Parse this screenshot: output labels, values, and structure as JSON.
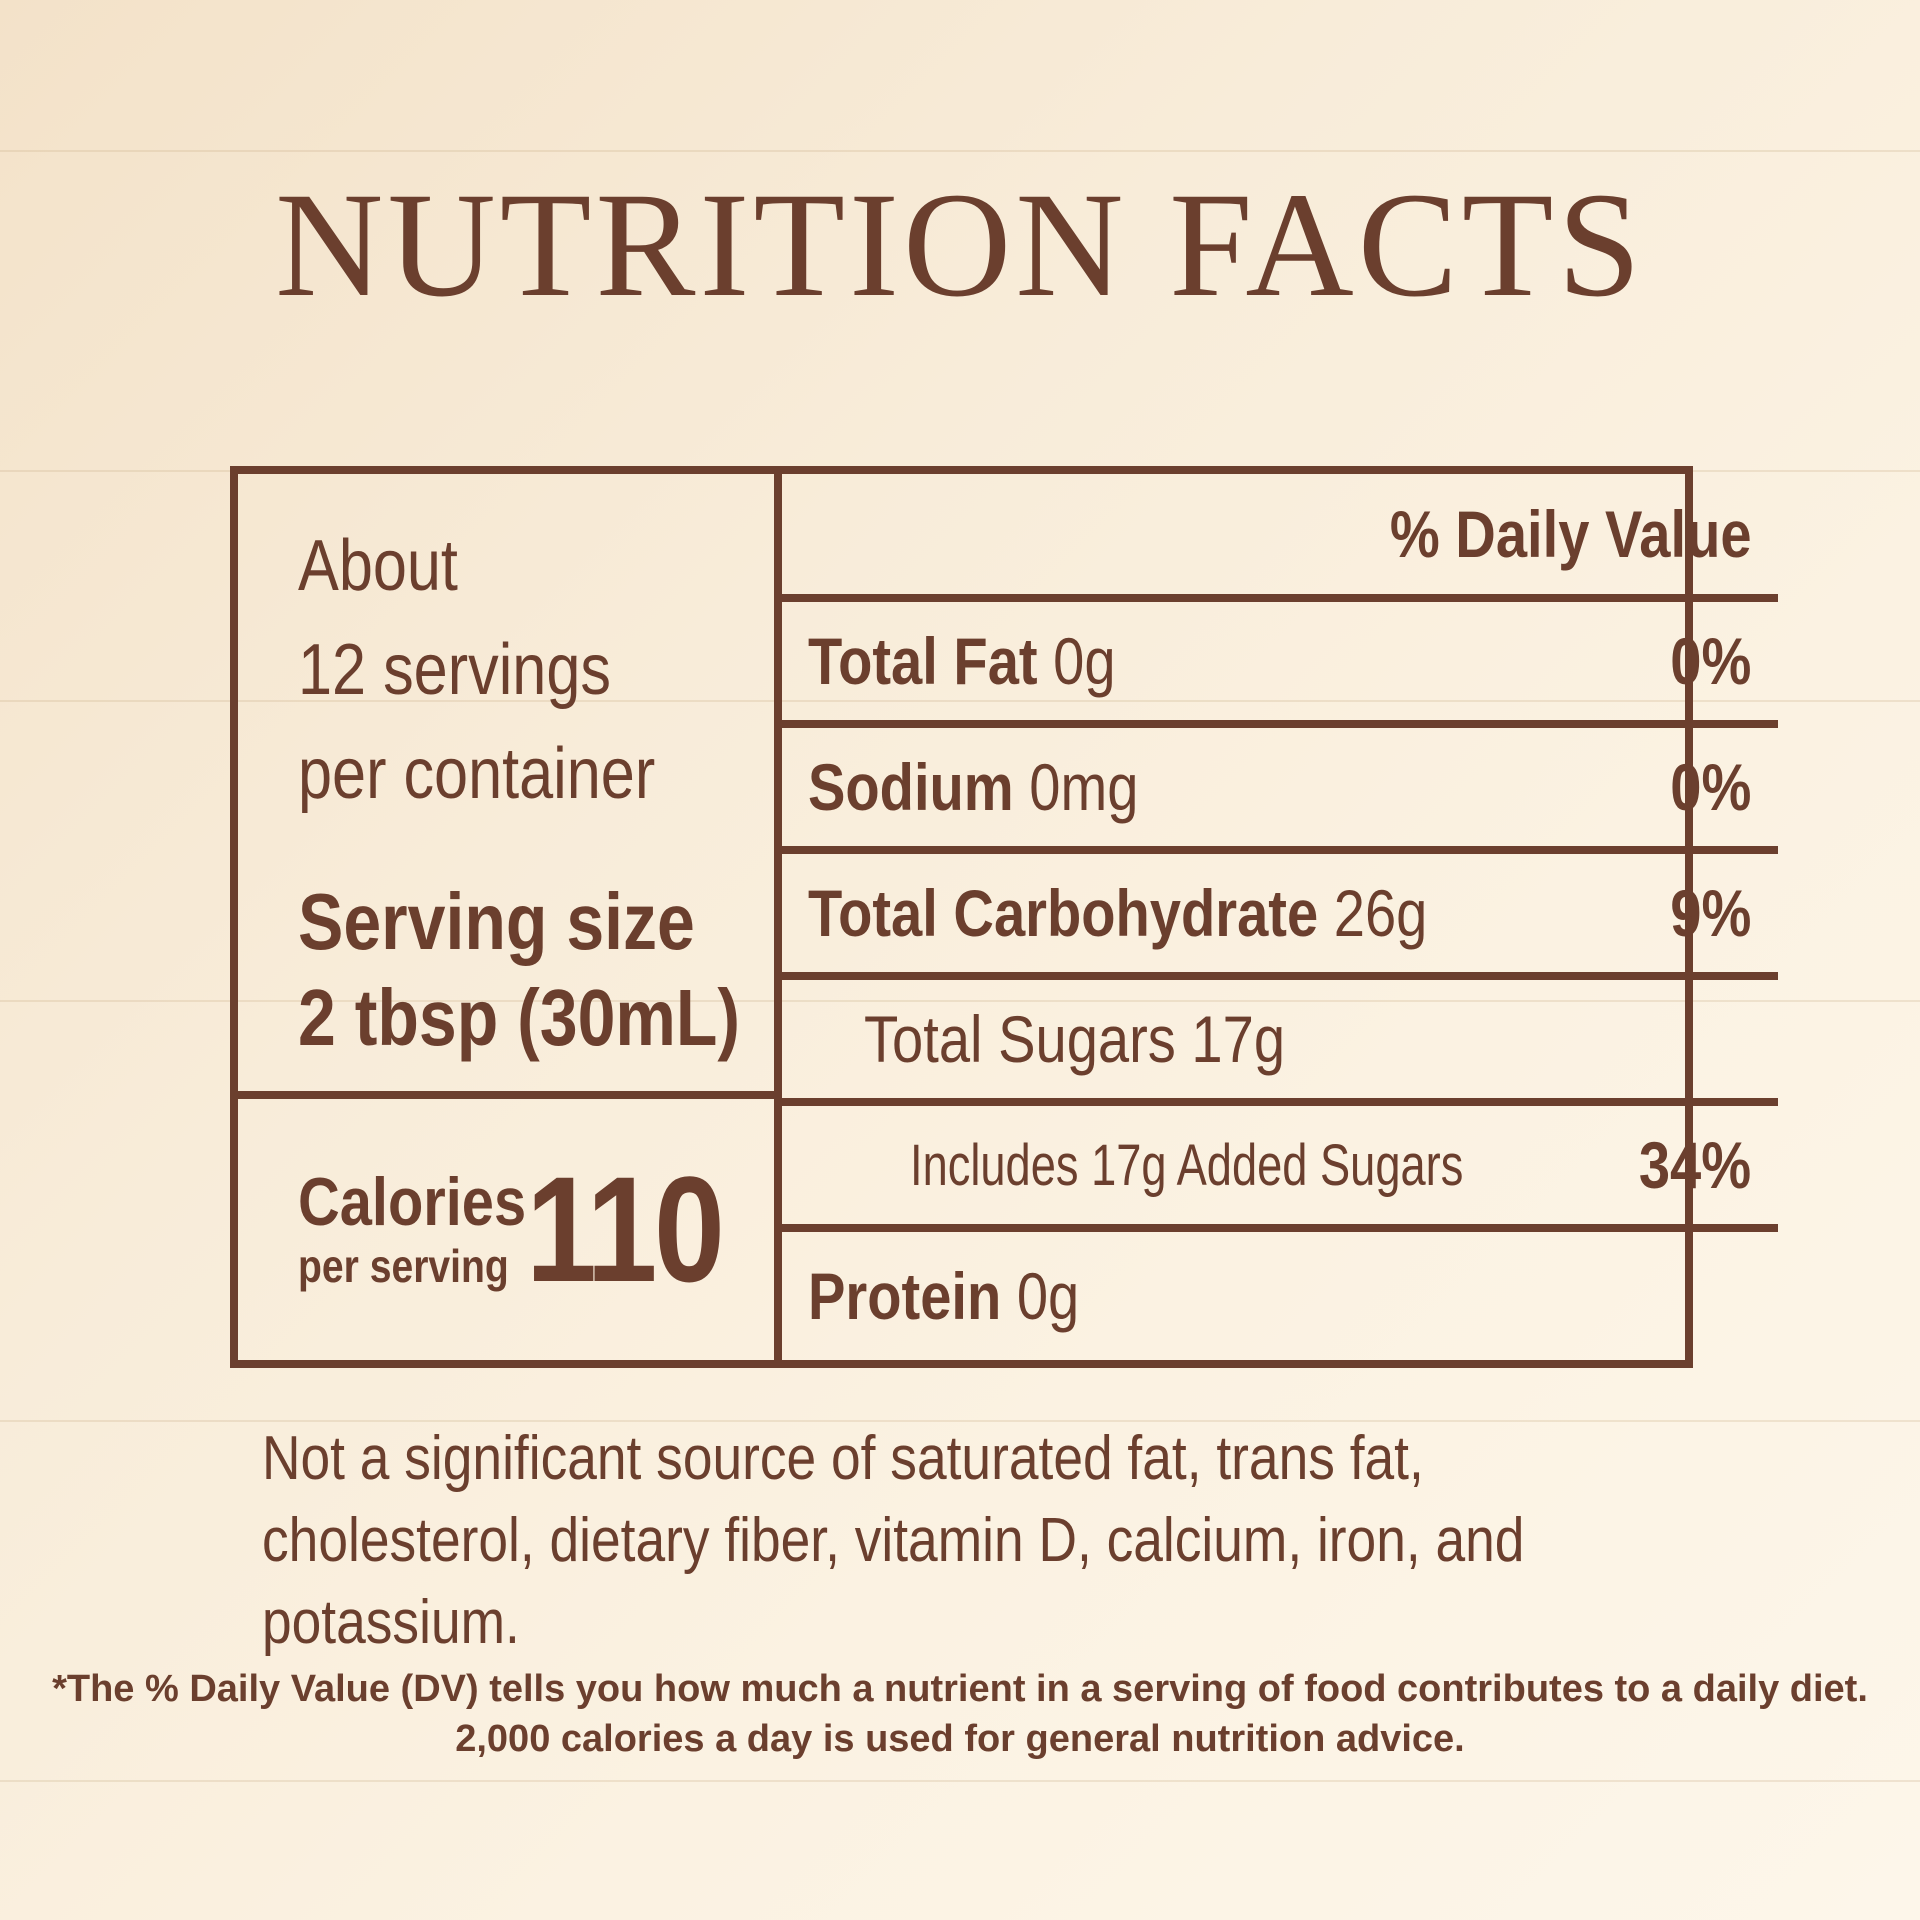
{
  "title": "NUTRITION FACTS",
  "servings": {
    "line1": "About",
    "line2": "12 servings",
    "line3": "per container"
  },
  "serving_size": {
    "label": "Serving size",
    "value": "2 tbsp (30mL)"
  },
  "calories": {
    "label": "Calories",
    "sublabel": "per serving",
    "value": "110"
  },
  "dv_header": "% Daily Value",
  "nutrients": [
    {
      "name": "Total Fat",
      "amount": "0g",
      "dv": "0%"
    },
    {
      "name": "Sodium",
      "amount": "0mg",
      "dv": "0%"
    },
    {
      "name": "Total Carbohydrate",
      "amount": "26g",
      "dv": "9%"
    },
    {
      "name": "",
      "amount": "Total Sugars 17g",
      "dv": ""
    },
    {
      "name": "",
      "amount": "Includes 17g Added Sugars",
      "dv": "34%"
    },
    {
      "name": "Protein",
      "amount": "0g",
      "dv": ""
    }
  ],
  "not_significant": "Not a significant source of saturated fat, trans fat, cholesterol, dietary fiber, vitamin D, calcium, iron, and potassium.",
  "footnote": "*The % Daily Value (DV) tells you how much a nutrient in a serving of food contributes to a daily diet. 2,000 calories a day is used for general nutrition advice.",
  "colors": {
    "brand_brown": "#6b3f2e",
    "background": "#f8ecd9"
  }
}
